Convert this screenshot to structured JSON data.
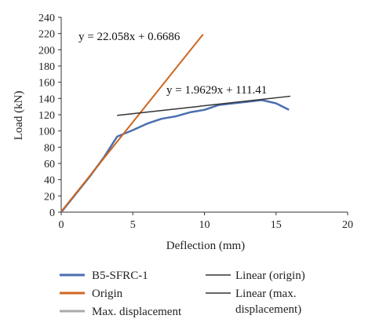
{
  "chart_data": {
    "type": "line",
    "xlabel": "Deflection (mm)",
    "ylabel": "Load (kN)",
    "xlim": [
      0,
      20
    ],
    "ylim": [
      0,
      240
    ],
    "x_ticks": [
      0,
      5,
      10,
      15,
      20
    ],
    "y_ticks": [
      0,
      20,
      40,
      60,
      80,
      100,
      120,
      140,
      160,
      180,
      200,
      220,
      240
    ],
    "grid": false,
    "legend_position": "bottom",
    "series": [
      {
        "name": "B5-SFRC-1",
        "color": "#4a6fb0",
        "x": [
          0,
          1,
          2,
          3,
          3.9,
          5,
          6,
          7,
          8,
          9,
          10,
          11,
          12,
          13,
          14,
          15,
          15.9
        ],
        "y": [
          0,
          22,
          44,
          68,
          93,
          101,
          109,
          115,
          118,
          123,
          126,
          132,
          134,
          136,
          138,
          134,
          126
        ]
      },
      {
        "name": "Origin",
        "color": "#d0671f",
        "x": [
          0,
          9.9
        ],
        "y": [
          0.6686,
          219
        ]
      },
      {
        "name": "Max. displacement",
        "color": "#aaaaaa",
        "x": [],
        "y": []
      },
      {
        "name": "Linear (origin)",
        "color": "#333333",
        "x": [
          0,
          9.9
        ],
        "y": [
          0.6686,
          219
        ]
      },
      {
        "name": "Linear (max. displacement)",
        "color": "#333333",
        "x": [
          3.9,
          16
        ],
        "y": [
          119.1,
          142.8
        ]
      }
    ],
    "legend": [
      {
        "label": "B5-SFRC-1",
        "color": "#4a6fb0"
      },
      {
        "label": "Linear (origin)",
        "color": "#333333"
      },
      {
        "label": "Origin",
        "color": "#d0671f"
      },
      {
        "label": "Linear (max.",
        "label2": "displacement)",
        "color": "#333333"
      },
      {
        "label": "Max. displacement",
        "color": "#aaaaaa"
      }
    ],
    "annotations": [
      {
        "text": "y = 22.058x + 0.6686"
      },
      {
        "text": "y = 1.9629x + 111.41"
      }
    ]
  }
}
